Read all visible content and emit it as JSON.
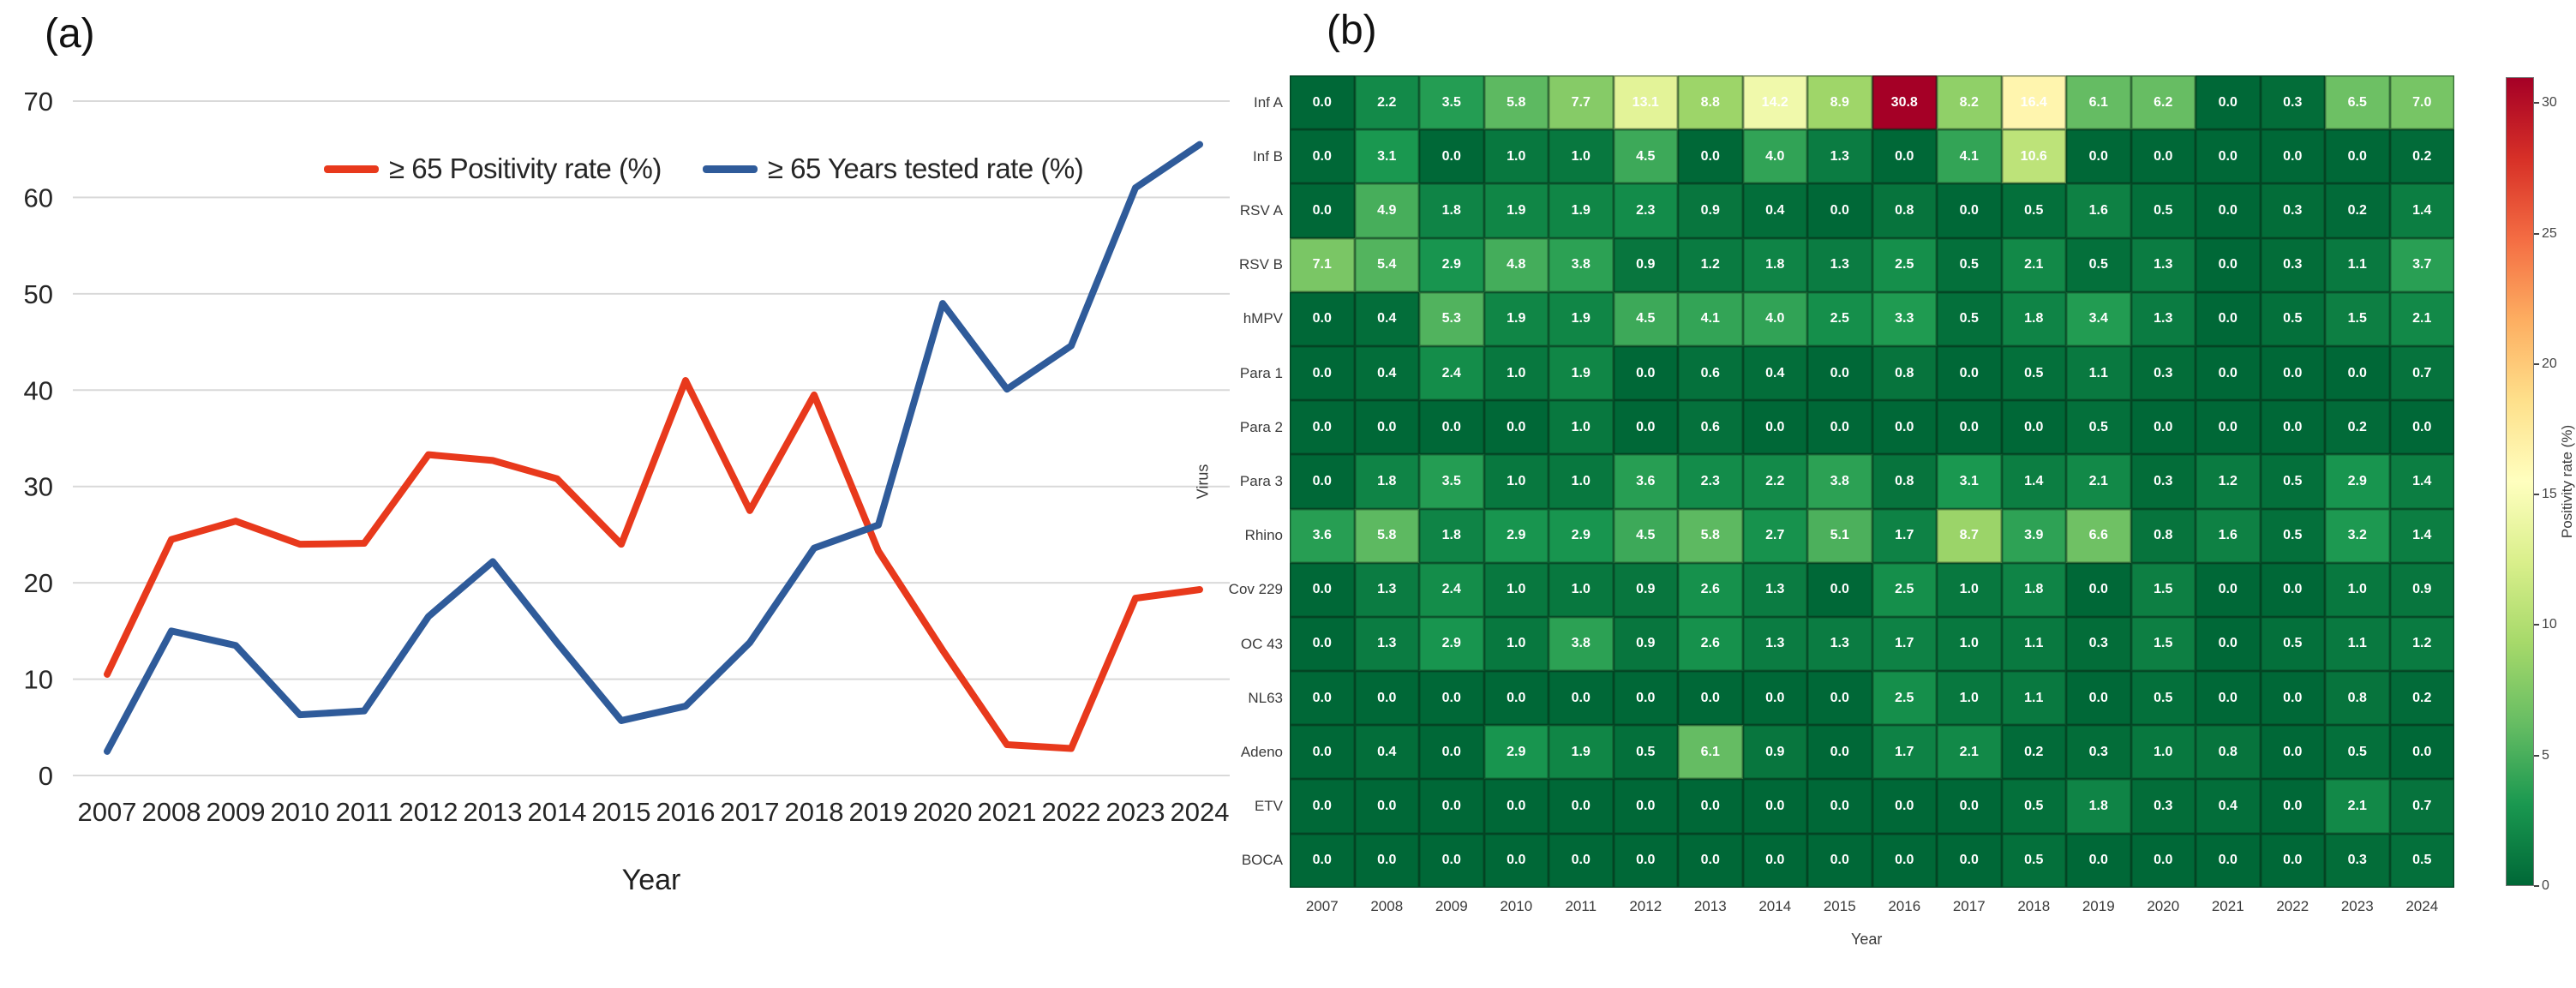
{
  "figure": {
    "panel_a_label": "(a)",
    "panel_b_label": "(b)"
  },
  "chart_data": [
    {
      "id": "age65-rates-line-chart",
      "type": "line",
      "title": "",
      "x": [
        2007,
        2008,
        2009,
        2010,
        2011,
        2012,
        2013,
        2014,
        2015,
        2016,
        2017,
        2018,
        2019,
        2020,
        2021,
        2022,
        2023,
        2024
      ],
      "series": [
        {
          "name": "≥ 65 Positivity rate (%)",
          "color": "#e8391c",
          "values": [
            10.5,
            24.5,
            26.4,
            24.0,
            24.1,
            33.3,
            32.7,
            30.8,
            24.0,
            41.0,
            27.5,
            39.5,
            23.3,
            13.0,
            3.2,
            2.8,
            18.4,
            19.3
          ]
        },
        {
          "name": "≥ 65 Years tested rate (%)",
          "color": "#2f5b9a",
          "values": [
            2.5,
            15.0,
            13.5,
            6.3,
            6.7,
            16.5,
            22.2,
            13.8,
            5.7,
            7.2,
            13.8,
            23.6,
            26.0,
            49.0,
            40.1,
            44.6,
            61.0,
            65.5
          ]
        }
      ],
      "xlabel": "Year",
      "ylabel": "",
      "ylim": [
        0,
        70
      ],
      "yticks": [
        0,
        10,
        20,
        30,
        40,
        50,
        60,
        70
      ],
      "grid": true,
      "gridline_color": "#d9d9d9",
      "tick_color": "#262626",
      "legend_position": "top-center-inside"
    },
    {
      "id": "virus-positivity-heatmap",
      "type": "heatmap",
      "rows": [
        "Inf A",
        "Inf B",
        "RSV A",
        "RSV B",
        "hMPV",
        "Para 1",
        "Para 2",
        "Para 3",
        "Rhino",
        "Cov 229",
        "OC 43",
        "NL63",
        "Adeno",
        "ETV",
        "BOCA"
      ],
      "columns": [
        "2007",
        "2008",
        "2009",
        "2010",
        "2011",
        "2012",
        "2013",
        "2014",
        "2015",
        "2016",
        "2017",
        "2018",
        "2019",
        "2020",
        "2021",
        "2022",
        "2023",
        "2024"
      ],
      "values": [
        [
          0.0,
          2.2,
          3.5,
          5.8,
          7.7,
          13.1,
          8.8,
          14.2,
          8.9,
          30.8,
          8.2,
          16.4,
          6.1,
          6.2,
          0.0,
          0.3,
          6.5,
          7.0
        ],
        [
          0.0,
          3.1,
          0.0,
          1.0,
          1.0,
          4.5,
          0.0,
          4.0,
          1.3,
          0.0,
          4.1,
          10.6,
          0.0,
          0.0,
          0.0,
          0.0,
          0.0,
          0.2
        ],
        [
          0.0,
          4.9,
          1.8,
          1.9,
          1.9,
          2.3,
          0.9,
          0.4,
          0.0,
          0.8,
          0.0,
          0.5,
          1.6,
          0.5,
          0.0,
          0.3,
          0.2,
          1.4
        ],
        [
          7.1,
          5.4,
          2.9,
          4.8,
          3.8,
          0.9,
          1.2,
          1.8,
          1.3,
          2.5,
          0.5,
          2.1,
          0.5,
          1.3,
          0.0,
          0.3,
          1.1,
          3.7
        ],
        [
          0.0,
          0.4,
          5.3,
          1.9,
          1.9,
          4.5,
          4.1,
          4.0,
          2.5,
          3.3,
          0.5,
          1.8,
          3.4,
          1.3,
          0.0,
          0.5,
          1.5,
          2.1
        ],
        [
          0.0,
          0.4,
          2.4,
          1.0,
          1.9,
          0.0,
          0.6,
          0.4,
          0.0,
          0.8,
          0.0,
          0.5,
          1.1,
          0.3,
          0.0,
          0.0,
          0.0,
          0.7
        ],
        [
          0.0,
          0.0,
          0.0,
          0.0,
          1.0,
          0.0,
          0.6,
          0.0,
          0.0,
          0.0,
          0.0,
          0.0,
          0.5,
          0.0,
          0.0,
          0.0,
          0.2,
          0.0
        ],
        [
          0.0,
          1.8,
          3.5,
          1.0,
          1.0,
          3.6,
          2.3,
          2.2,
          3.8,
          0.8,
          3.1,
          1.4,
          2.1,
          0.3,
          1.2,
          0.5,
          2.9,
          1.4
        ],
        [
          3.6,
          5.8,
          1.8,
          2.9,
          2.9,
          4.5,
          5.8,
          2.7,
          5.1,
          1.7,
          8.7,
          3.9,
          6.6,
          0.8,
          1.6,
          0.5,
          3.2,
          1.4
        ],
        [
          0.0,
          1.3,
          2.4,
          1.0,
          1.0,
          0.9,
          2.6,
          1.3,
          0.0,
          2.5,
          1.0,
          1.8,
          0.0,
          1.5,
          0.0,
          0.0,
          1.0,
          0.9
        ],
        [
          0.0,
          1.3,
          2.9,
          1.0,
          3.8,
          0.9,
          2.6,
          1.3,
          1.3,
          1.7,
          1.0,
          1.1,
          0.3,
          1.5,
          0.0,
          0.5,
          1.1,
          1.2
        ],
        [
          0.0,
          0.0,
          0.0,
          0.0,
          0.0,
          0.0,
          0.0,
          0.0,
          0.0,
          2.5,
          1.0,
          1.1,
          0.0,
          0.5,
          0.0,
          0.0,
          0.8,
          0.2
        ],
        [
          0.0,
          0.4,
          0.0,
          2.9,
          1.9,
          0.5,
          6.1,
          0.9,
          0.0,
          1.7,
          2.1,
          0.2,
          0.3,
          1.0,
          0.8,
          0.0,
          0.5,
          0.0
        ],
        [
          0.0,
          0.0,
          0.0,
          0.0,
          0.0,
          0.0,
          0.0,
          0.0,
          0.0,
          0.0,
          0.0,
          0.5,
          1.8,
          0.3,
          0.4,
          0.0,
          2.1,
          0.7
        ],
        [
          0.0,
          0.0,
          0.0,
          0.0,
          0.0,
          0.0,
          0.0,
          0.0,
          0.0,
          0.0,
          0.0,
          0.5,
          0.0,
          0.0,
          0.0,
          0.0,
          0.3,
          0.5
        ]
      ],
      "xlabel": "Year",
      "ylabel": "Virus",
      "cell_text_color": "#ffffff",
      "colorbar": {
        "label": "Positivity rate (%)",
        "ticks": [
          0,
          5,
          10,
          15,
          20,
          25,
          30
        ],
        "vmin": 0,
        "vmax": 31,
        "colormap": "RdYlGn_r",
        "colormap_anchors_low_to_high": [
          "#006837",
          "#1a9850",
          "#66bd63",
          "#a6d96a",
          "#d9ef8b",
          "#ffffbf",
          "#fee08b",
          "#fdae61",
          "#f46d43",
          "#d73027",
          "#a50026"
        ]
      }
    }
  ]
}
